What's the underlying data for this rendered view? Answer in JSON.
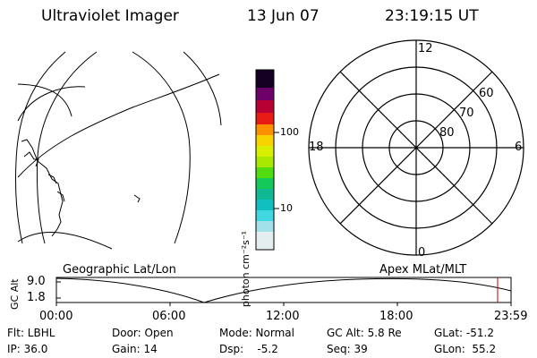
{
  "header": {
    "instrument": "Ultraviolet Imager",
    "date": "13 Jun 07",
    "time": "23:19:15 UT"
  },
  "colorbar": {
    "unit_label": "photon cm⁻²s⁻¹",
    "tick_labels": [
      "100",
      "10"
    ]
  },
  "polar_plot": {
    "mlt_labels": [
      "12",
      "18",
      "6",
      "0"
    ],
    "lat_labels": [
      "60",
      "70",
      "80"
    ]
  },
  "timeline": {
    "left_title": "Geographic Lat/Lon",
    "right_title": "Apex MLat/MLT",
    "y_axis_label": "GC Alt",
    "y_ticks": [
      "9.0",
      "1.8"
    ],
    "x_ticks": [
      "00:00",
      "06:00",
      "12:00",
      "18:00",
      "23:59"
    ],
    "marker_color": "#c00000"
  },
  "footer": {
    "flt": "Flt: LBHL",
    "ip": "IP: 36.0",
    "door": "Door: Open",
    "gain": "Gain: 14",
    "mode": "Mode: Normal",
    "dsp": "Dsp:    -5.2",
    "gc_alt": "GC Alt: 5.8 Re",
    "seq": "Seq: 39",
    "glat": "GLat: -51.2",
    "glon": "GLon:  55.2"
  }
}
